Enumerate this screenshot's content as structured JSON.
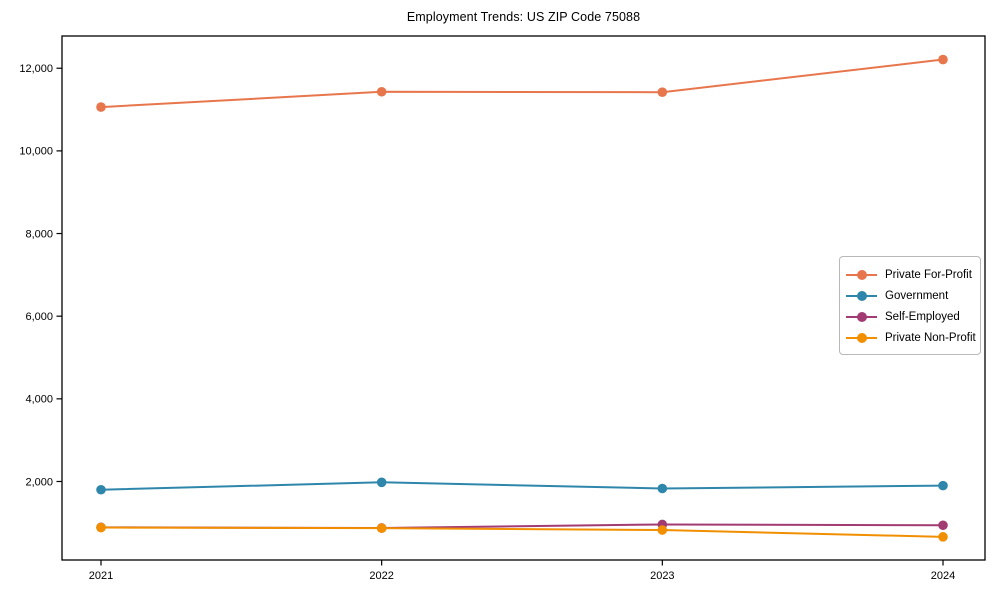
{
  "title": "Employment Trends: US ZIP Code 75088",
  "chart_data": {
    "type": "line",
    "title": "Employment Trends: US ZIP Code 75088",
    "xlabel": "",
    "ylabel": "",
    "x": [
      2021,
      2022,
      2023,
      2024
    ],
    "xtick_labels": [
      "2021",
      "2022",
      "2023",
      "2024"
    ],
    "yticks": [
      2000,
      4000,
      6000,
      8000,
      10000,
      12000
    ],
    "ytick_labels": [
      "2,000",
      "4,000",
      "6,000",
      "8,000",
      "10,000",
      "12,000"
    ],
    "ylim": [
      100,
      12780
    ],
    "grid": false,
    "legend_position": "center right",
    "background_color": "#ffffff",
    "axis_color": "#000000",
    "series": [
      {
        "name": "Private For-Profit",
        "color": "#E8764C",
        "values": [
          11060,
          11430,
          11420,
          12210
        ]
      },
      {
        "name": "Government",
        "color": "#2E86AB",
        "values": [
          1800,
          1980,
          1830,
          1900
        ]
      },
      {
        "name": "Self-Employed",
        "color": "#A23B72",
        "values": [
          890,
          875,
          960,
          940
        ]
      },
      {
        "name": "Private Non-Profit",
        "color": "#F18F01",
        "values": [
          885,
          870,
          825,
          660
        ]
      }
    ]
  }
}
